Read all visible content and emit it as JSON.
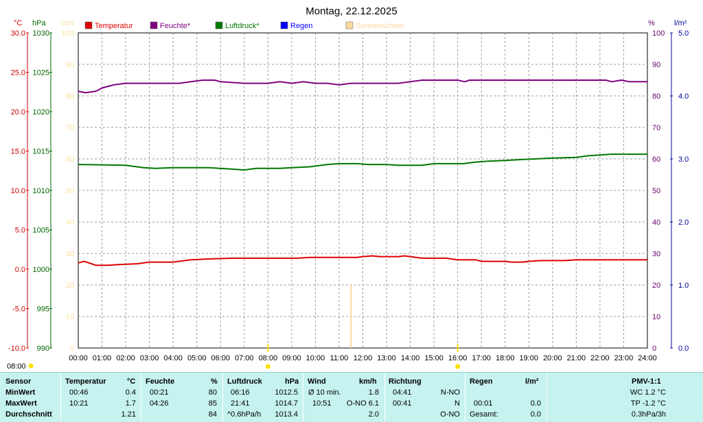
{
  "chart_data": {
    "type": "line",
    "title": "Montag, 22.12.2025",
    "x_ticks": [
      "00:00",
      "01:00",
      "02:00",
      "03:00",
      "04:00",
      "05:00",
      "06:00",
      "07:00",
      "08:00",
      "09:00",
      "10:00",
      "11:00",
      "12:00",
      "13:00",
      "14:00",
      "15:00",
      "16:00",
      "17:00",
      "18:00",
      "19:00",
      "20:00",
      "21:00",
      "22:00",
      "23:00",
      "24:00"
    ],
    "x_range_hours": [
      0,
      24
    ],
    "axes": {
      "temperature": {
        "unit": "°C",
        "range": [
          -10,
          30
        ],
        "ticks": [
          "30.0",
          "25.0",
          "20.0",
          "15.0",
          "10.0",
          "5.0",
          "0.0",
          "-5.0",
          "-10.0"
        ],
        "color": "#cc0000"
      },
      "pressure": {
        "unit": "hPa",
        "range": [
          990,
          1030
        ],
        "ticks": [
          "1030",
          "1025",
          "1020",
          "1015",
          "1010",
          "1005",
          "1000",
          "995",
          "990"
        ],
        "color": "#006600"
      },
      "minutes": {
        "unit": "min",
        "range": [
          0,
          100
        ],
        "ticks": [
          "100",
          "90",
          "80",
          "70",
          "60",
          "50",
          "40",
          "30",
          "20",
          "10",
          "0"
        ],
        "color": "#ffe0a0"
      },
      "humidity": {
        "unit": "%",
        "range": [
          0,
          100
        ],
        "ticks": [
          "100",
          "90",
          "80",
          "70",
          "60",
          "50",
          "40",
          "30",
          "20",
          "10",
          "0"
        ],
        "color": "#660066"
      },
      "rain": {
        "unit": "l/m²",
        "range": [
          0,
          5
        ],
        "ticks": [
          "5.0",
          "4.0",
          "3.0",
          "2.0",
          "1.0",
          "0.0"
        ],
        "color": "#000099"
      }
    },
    "grid": true,
    "legend": [
      {
        "name": "Temperatur",
        "color": "#dd0000"
      },
      {
        "name": "Feuchte*",
        "color": "#800080"
      },
      {
        "name": "Luftdruck*",
        "color": "#007700"
      },
      {
        "name": "Regen",
        "color": "#0000ff"
      },
      {
        "name": "Sonnenschein",
        "color": "#ffd8a0"
      }
    ],
    "series": [
      {
        "name": "Temperatur",
        "axis": "temperature",
        "color": "#dd0000",
        "points": [
          [
            0,
            0.8
          ],
          [
            0.25,
            1.0
          ],
          [
            0.75,
            0.5
          ],
          [
            1.25,
            0.5
          ],
          [
            1.75,
            0.6
          ],
          [
            2.5,
            0.7
          ],
          [
            3,
            0.9
          ],
          [
            4,
            0.9
          ],
          [
            4.25,
            1.0
          ],
          [
            4.75,
            1.2
          ],
          [
            5.5,
            1.3
          ],
          [
            6.5,
            1.4
          ],
          [
            8,
            1.4
          ],
          [
            8.5,
            1.4
          ],
          [
            9.25,
            1.4
          ],
          [
            9.75,
            1.5
          ],
          [
            11,
            1.5
          ],
          [
            11.75,
            1.5
          ],
          [
            12,
            1.6
          ],
          [
            12.4,
            1.7
          ],
          [
            12.75,
            1.6
          ],
          [
            13.5,
            1.6
          ],
          [
            13.75,
            1.7
          ],
          [
            14,
            1.6
          ],
          [
            14.5,
            1.4
          ],
          [
            15.5,
            1.4
          ],
          [
            16,
            1.2
          ],
          [
            16.75,
            1.2
          ],
          [
            17,
            1.0
          ],
          [
            18,
            1.0
          ],
          [
            18.25,
            0.9
          ],
          [
            18.75,
            0.9
          ],
          [
            19,
            1.0
          ],
          [
            19.5,
            1.1
          ],
          [
            20.5,
            1.1
          ],
          [
            21,
            1.2
          ],
          [
            24,
            1.2
          ]
        ]
      },
      {
        "name": "Feuchte*",
        "axis": "humidity",
        "color": "#800080",
        "points": [
          [
            0,
            81.5
          ],
          [
            0.3,
            81.0
          ],
          [
            0.75,
            81.5
          ],
          [
            1,
            82.5
          ],
          [
            1.5,
            83.5
          ],
          [
            2,
            84.0
          ],
          [
            4.25,
            84.0
          ],
          [
            4.75,
            84.5
          ],
          [
            5.25,
            85.0
          ],
          [
            5.75,
            85.0
          ],
          [
            6,
            84.5
          ],
          [
            7,
            84.0
          ],
          [
            8,
            84.0
          ],
          [
            8.5,
            84.5
          ],
          [
            9,
            84.0
          ],
          [
            9.5,
            84.5
          ],
          [
            10,
            84.0
          ],
          [
            10.5,
            84.0
          ],
          [
            11,
            83.5
          ],
          [
            11.5,
            84.0
          ],
          [
            13.5,
            84.0
          ],
          [
            14,
            84.5
          ],
          [
            14.5,
            85.0
          ],
          [
            16,
            85.0
          ],
          [
            16.3,
            84.5
          ],
          [
            16.5,
            85.0
          ],
          [
            22.25,
            85.0
          ],
          [
            22.5,
            84.5
          ],
          [
            22.9,
            85.0
          ],
          [
            23.25,
            84.5
          ],
          [
            24,
            84.5
          ]
        ]
      },
      {
        "name": "Luftdruck*",
        "axis": "pressure",
        "color": "#007700",
        "points": [
          [
            0,
            1013.3
          ],
          [
            2,
            1013.2
          ],
          [
            2.75,
            1012.9
          ],
          [
            3.25,
            1012.8
          ],
          [
            4,
            1012.9
          ],
          [
            5.5,
            1012.9
          ],
          [
            6.5,
            1012.7
          ],
          [
            7,
            1012.6
          ],
          [
            7.5,
            1012.8
          ],
          [
            8.5,
            1012.8
          ],
          [
            9,
            1012.9
          ],
          [
            9.75,
            1013.0
          ],
          [
            10.5,
            1013.3
          ],
          [
            11,
            1013.4
          ],
          [
            11.75,
            1013.4
          ],
          [
            12.25,
            1013.3
          ],
          [
            13,
            1013.3
          ],
          [
            13.5,
            1013.2
          ],
          [
            14.5,
            1013.2
          ],
          [
            15,
            1013.4
          ],
          [
            16.25,
            1013.4
          ],
          [
            16.75,
            1013.6
          ],
          [
            17.25,
            1013.7
          ],
          [
            18,
            1013.8
          ],
          [
            18.5,
            1013.9
          ],
          [
            19.25,
            1014.0
          ],
          [
            20,
            1014.1
          ],
          [
            21,
            1014.2
          ],
          [
            21.5,
            1014.4
          ],
          [
            22,
            1014.5
          ],
          [
            22.5,
            1014.6
          ],
          [
            24,
            1014.6
          ]
        ]
      }
    ],
    "sunshine_bars": [
      {
        "hour": 11.5,
        "minutes": 20
      }
    ],
    "markers": [
      {
        "hour": 8,
        "color": "#ffe000"
      },
      {
        "hour": 16,
        "color": "#ffe000"
      }
    ],
    "below_axis_label": "08:00"
  },
  "stats": {
    "headers": {
      "sensor": "Sensor",
      "temp": "Temperatur",
      "temp_unit": "°C",
      "hum": "Feuchte",
      "hum_unit": "%",
      "pres": "Luftdruck",
      "pres_unit": "hPa",
      "wind": "Wind",
      "wind_unit": "km/h",
      "dir": "Richtung",
      "rain": "Regen",
      "rain_unit": "l/m²",
      "pmv": "PMV-1:1"
    },
    "rows": [
      {
        "label": "MinWert",
        "temp_time": "00:46",
        "temp_val": "0.4",
        "hum_time": "00:21",
        "hum_val": "80",
        "pres_time": "06:16",
        "pres_val": "1012.5",
        "wind_label": "Ø 10 min.",
        "wind_val": "1.8",
        "dir_time": "04:41",
        "dir_val": "N-NO",
        "rain_time": "",
        "rain_val": "",
        "pmv": "WC 1.2 °C"
      },
      {
        "label": "MaxWert",
        "temp_time": "10:21",
        "temp_val": "1.7",
        "hum_time": "04:26",
        "hum_val": "85",
        "pres_time": "21:41",
        "pres_val": "1014.7",
        "wind_label": "10:51",
        "wind_val": "O-NO 6.1",
        "dir_time": "00:41",
        "dir_val": "N",
        "rain_time": "00:01",
        "rain_val": "0.0",
        "pmv": "TP -1.2 °C"
      },
      {
        "label": "Durchschnitt",
        "temp_time": "",
        "temp_val": "1.21",
        "hum_time": "",
        "hum_val": "84",
        "pres_time": "^0.6hPa/h",
        "pres_val": "1013.4",
        "wind_label": "",
        "wind_val": "2.0",
        "dir_time": "",
        "dir_val": "O-NO",
        "rain_time": "Gesamt:",
        "rain_val": "0.0",
        "pmv": "0.3hPa/3h"
      }
    ]
  }
}
